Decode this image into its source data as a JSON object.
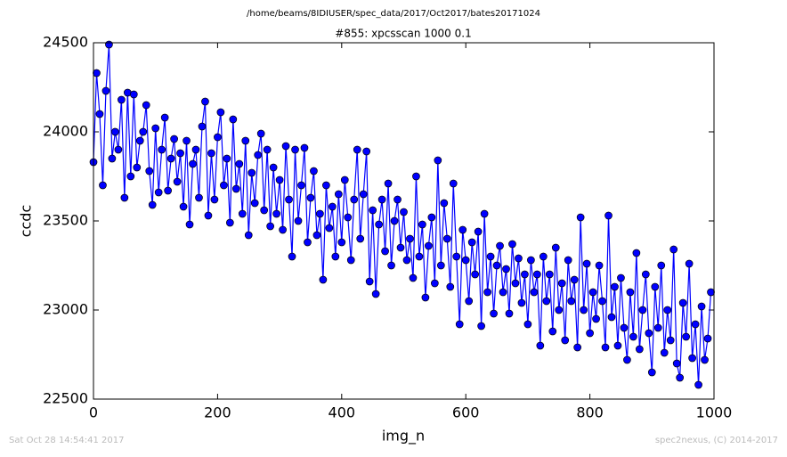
{
  "chart_data": {
    "type": "line",
    "suptitle": "/home/beams/8IDIUSER/spec_data/2017/Oct2017/bates20171024",
    "title": "#855: xpcsscan 1000 0.1",
    "x_label": "img_n",
    "y_label": "ccdc",
    "footer_left": "Sat Oct 28 14:54:41 2017",
    "footer_right": "spec2nexus, (C) 2014-2017",
    "xlim": [
      0,
      1000
    ],
    "xticks": [
      0,
      200,
      400,
      600,
      800,
      1000
    ],
    "ylim": [
      22500,
      24500
    ],
    "yticks": [
      22500,
      23000,
      23500,
      24000,
      24500
    ],
    "x": [
      0,
      5,
      10,
      15,
      20,
      25,
      30,
      35,
      40,
      45,
      50,
      55,
      60,
      65,
      70,
      75,
      80,
      85,
      90,
      95,
      100,
      105,
      110,
      115,
      120,
      125,
      130,
      135,
      140,
      145,
      150,
      155,
      160,
      165,
      170,
      175,
      180,
      185,
      190,
      195,
      200,
      205,
      210,
      215,
      220,
      225,
      230,
      235,
      240,
      245,
      250,
      255,
      260,
      265,
      270,
      275,
      280,
      285,
      290,
      295,
      300,
      305,
      310,
      315,
      320,
      325,
      330,
      335,
      340,
      345,
      350,
      355,
      360,
      365,
      370,
      375,
      380,
      385,
      390,
      395,
      400,
      405,
      410,
      415,
      420,
      425,
      430,
      435,
      440,
      445,
      450,
      455,
      460,
      465,
      470,
      475,
      480,
      485,
      490,
      495,
      500,
      505,
      510,
      515,
      520,
      525,
      530,
      535,
      540,
      545,
      550,
      555,
      560,
      565,
      570,
      575,
      580,
      585,
      590,
      595,
      600,
      605,
      610,
      615,
      620,
      625,
      630,
      635,
      640,
      645,
      650,
      655,
      660,
      665,
      670,
      675,
      680,
      685,
      690,
      695,
      700,
      705,
      710,
      715,
      720,
      725,
      730,
      735,
      740,
      745,
      750,
      755,
      760,
      765,
      770,
      775,
      780,
      785,
      790,
      795,
      800,
      805,
      810,
      815,
      820,
      825,
      830,
      835,
      840,
      845,
      850,
      855,
      860,
      865,
      870,
      875,
      880,
      885,
      890,
      895,
      900,
      905,
      910,
      915,
      920,
      925,
      930,
      935,
      940,
      945,
      950,
      955,
      960,
      965,
      970,
      975,
      980,
      985,
      990,
      995
    ],
    "series": [
      {
        "color": "#0000ff",
        "values": [
          23830,
          24330,
          24100,
          23700,
          24230,
          24490,
          23850,
          24000,
          23900,
          24180,
          23630,
          24220,
          23750,
          24210,
          23800,
          23950,
          24000,
          24150,
          23780,
          23590,
          24020,
          23660,
          23900,
          24080,
          23670,
          23850,
          23960,
          23720,
          23880,
          23580,
          23950,
          23480,
          23820,
          23900,
          23630,
          24030,
          24170,
          23530,
          23880,
          23620,
          23970,
          24110,
          23700,
          23850,
          23490,
          24070,
          23680,
          23820,
          23540,
          23950,
          23420,
          23770,
          23600,
          23870,
          23990,
          23560,
          23900,
          23470,
          23800,
          23540,
          23730,
          23450,
          23920,
          23620,
          23300,
          23900,
          23500,
          23700,
          23910,
          23380,
          23630,
          23780,
          23420,
          23540,
          23170,
          23700,
          23460,
          23580,
          23300,
          23650,
          23380,
          23730,
          23520,
          23280,
          23620,
          23900,
          23400,
          23650,
          23890,
          23160,
          23560,
          23090,
          23480,
          23620,
          23330,
          23710,
          23250,
          23500,
          23620,
          23350,
          23550,
          23280,
          23400,
          23180,
          23750,
          23300,
          23480,
          23070,
          23360,
          23520,
          23150,
          23840,
          23250,
          23600,
          23400,
          23130,
          23710,
          23300,
          22920,
          23450,
          23280,
          23050,
          23380,
          23200,
          23440,
          22910,
          23540,
          23100,
          23300,
          22980,
          23250,
          23360,
          23100,
          23230,
          22980,
          23370,
          23150,
          23290,
          23040,
          23200,
          22920,
          23280,
          23100,
          23200,
          22800,
          23300,
          23050,
          23200,
          22880,
          23350,
          23000,
          23150,
          22830,
          23280,
          23050,
          23170,
          22790,
          23520,
          23000,
          23260,
          22870,
          23100,
          22950,
          23250,
          23050,
          22790,
          23530,
          22960,
          23130,
          22800,
          23180,
          22900,
          22720,
          23100,
          22850,
          23320,
          22780,
          23000,
          23200,
          22870,
          22650,
          23130,
          22900,
          23250,
          22760,
          23000,
          22830,
          23340,
          22700,
          22620,
          23040,
          22850,
          23260,
          22730,
          22920,
          22580,
          23020,
          22720,
          22840,
          23100
        ]
      }
    ]
  }
}
